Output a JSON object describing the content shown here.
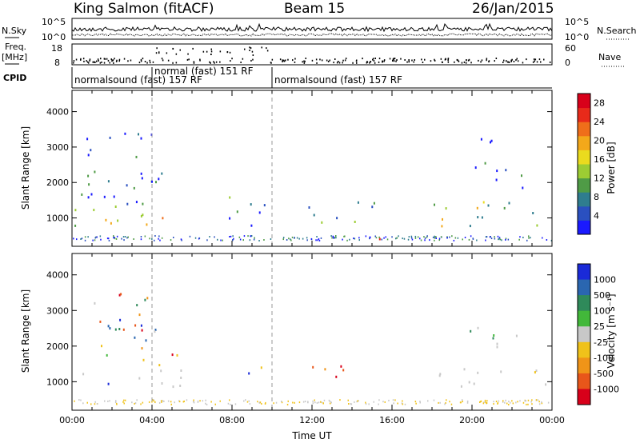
{
  "header": {
    "station": "King Salmon (fitACF)",
    "beam": "Beam 15",
    "date": "26/Jan/2015"
  },
  "left_labels": {
    "nsky": "N.Sky",
    "freq_line1": "Freq.",
    "freq_line2": "[MHz]",
    "cpid": "CPID"
  },
  "right_labels": {
    "nsearch": "N.Search",
    "nave": "Nave"
  },
  "noise_panel": {
    "left_ticks": [
      "10^5",
      "10^0"
    ],
    "right_ticks": [
      "10^5",
      "10^0"
    ]
  },
  "freq_panel": {
    "left_ticks": [
      "18",
      "8"
    ],
    "right_ticks": [
      "60",
      "0"
    ]
  },
  "cpid_segments": [
    {
      "label": "normalsound (fast) 157 RF",
      "start_hour": 0.0,
      "end_hour": 4.0
    },
    {
      "label": "normal (fast) 151 RF",
      "start_hour": 4.0,
      "end_hour": 10.0
    },
    {
      "label": "normalsound (fast) 157 RF",
      "start_hour": 10.0,
      "end_hour": 24.0
    }
  ],
  "chart_data": [
    {
      "type": "heatmap",
      "panel": "power",
      "ylabel": "Slant Range [km]",
      "xlabel": "",
      "xlim": [
        0,
        24
      ],
      "ylim": [
        200,
        4600
      ],
      "yticks": [
        "1000",
        "2000",
        "3000",
        "4000"
      ],
      "colorbar": {
        "label": "Power [dB]",
        "ticks": [
          "4",
          "8",
          "12",
          "16",
          "20",
          "24",
          "28"
        ],
        "range": [
          0,
          30
        ],
        "colors": [
          "#1a1aff",
          "#2a50c0",
          "#2f7d8f",
          "#4f9b46",
          "#9ccc33",
          "#eadb1e",
          "#f3a81a",
          "#ef6e1a",
          "#e82a1a",
          "#d8001a"
        ]
      },
      "regions": [
        {
          "t0": 0.1,
          "t1": 5.6,
          "r0": 800,
          "r1": 1400,
          "level": 0.55
        },
        {
          "t0": 0.2,
          "t1": 4.5,
          "r0": 1400,
          "r1": 3500,
          "level": 0.15
        },
        {
          "t0": 7.6,
          "t1": 9.6,
          "r0": 700,
          "r1": 1800,
          "level": 0.2
        },
        {
          "t0": 11.6,
          "t1": 15.2,
          "r0": 800,
          "r1": 1500,
          "level": 0.35
        },
        {
          "t0": 14.2,
          "t1": 15.6,
          "r0": 420,
          "r1": 560,
          "level": 0.75
        },
        {
          "t0": 17.8,
          "t1": 24.0,
          "r0": 800,
          "r1": 1500,
          "level": 0.45
        },
        {
          "t0": 19.8,
          "t1": 22.6,
          "r0": 1800,
          "r1": 2600,
          "level": 0.15
        },
        {
          "t0": 19.0,
          "t1": 21.0,
          "r0": 2900,
          "r1": 3400,
          "level": 0.1
        }
      ]
    },
    {
      "type": "heatmap",
      "panel": "velocity",
      "ylabel": "Slant Range [km]",
      "xlabel": "Time UT",
      "xlim": [
        0,
        24
      ],
      "ylim": [
        200,
        4600
      ],
      "xticks": [
        "00:00",
        "04:00",
        "08:00",
        "12:00",
        "16:00",
        "20:00",
        "00:00"
      ],
      "yticks": [
        "1000",
        "2000",
        "3000",
        "4000"
      ],
      "colorbar": {
        "label": "Velocity [m s⁻¹]",
        "ticks": [
          "1000",
          "500",
          "100",
          "25",
          "-25",
          "-100",
          "-500",
          "-1000"
        ],
        "range": [
          -1000,
          1000
        ],
        "colors": [
          "#1a2ad8",
          "#2a66b0",
          "#2f8a5a",
          "#42b83a",
          "#c8c8c8",
          "#f0c21a",
          "#f09418",
          "#e8561a",
          "#d8001a"
        ]
      },
      "regions": [
        {
          "t0": 0.1,
          "t1": 5.6,
          "r0": 850,
          "r1": 1350,
          "level": "ground"
        },
        {
          "t0": 0.5,
          "t1": 4.2,
          "r0": 1500,
          "r1": 3500,
          "level": "mixed"
        },
        {
          "t0": 3.8,
          "t1": 5.5,
          "r0": 1200,
          "r1": 1800,
          "level": "away"
        },
        {
          "t0": 8.4,
          "t1": 9.6,
          "r0": 900,
          "r1": 1500,
          "level": "mixed"
        },
        {
          "t0": 11.6,
          "t1": 14.2,
          "r0": 900,
          "r1": 1500,
          "level": "away"
        },
        {
          "t0": 17.8,
          "t1": 24.0,
          "r0": 850,
          "r1": 1400,
          "level": "ground"
        },
        {
          "t0": 19.8,
          "t1": 22.6,
          "r0": 1800,
          "r1": 2600,
          "level": "toward"
        }
      ]
    }
  ]
}
